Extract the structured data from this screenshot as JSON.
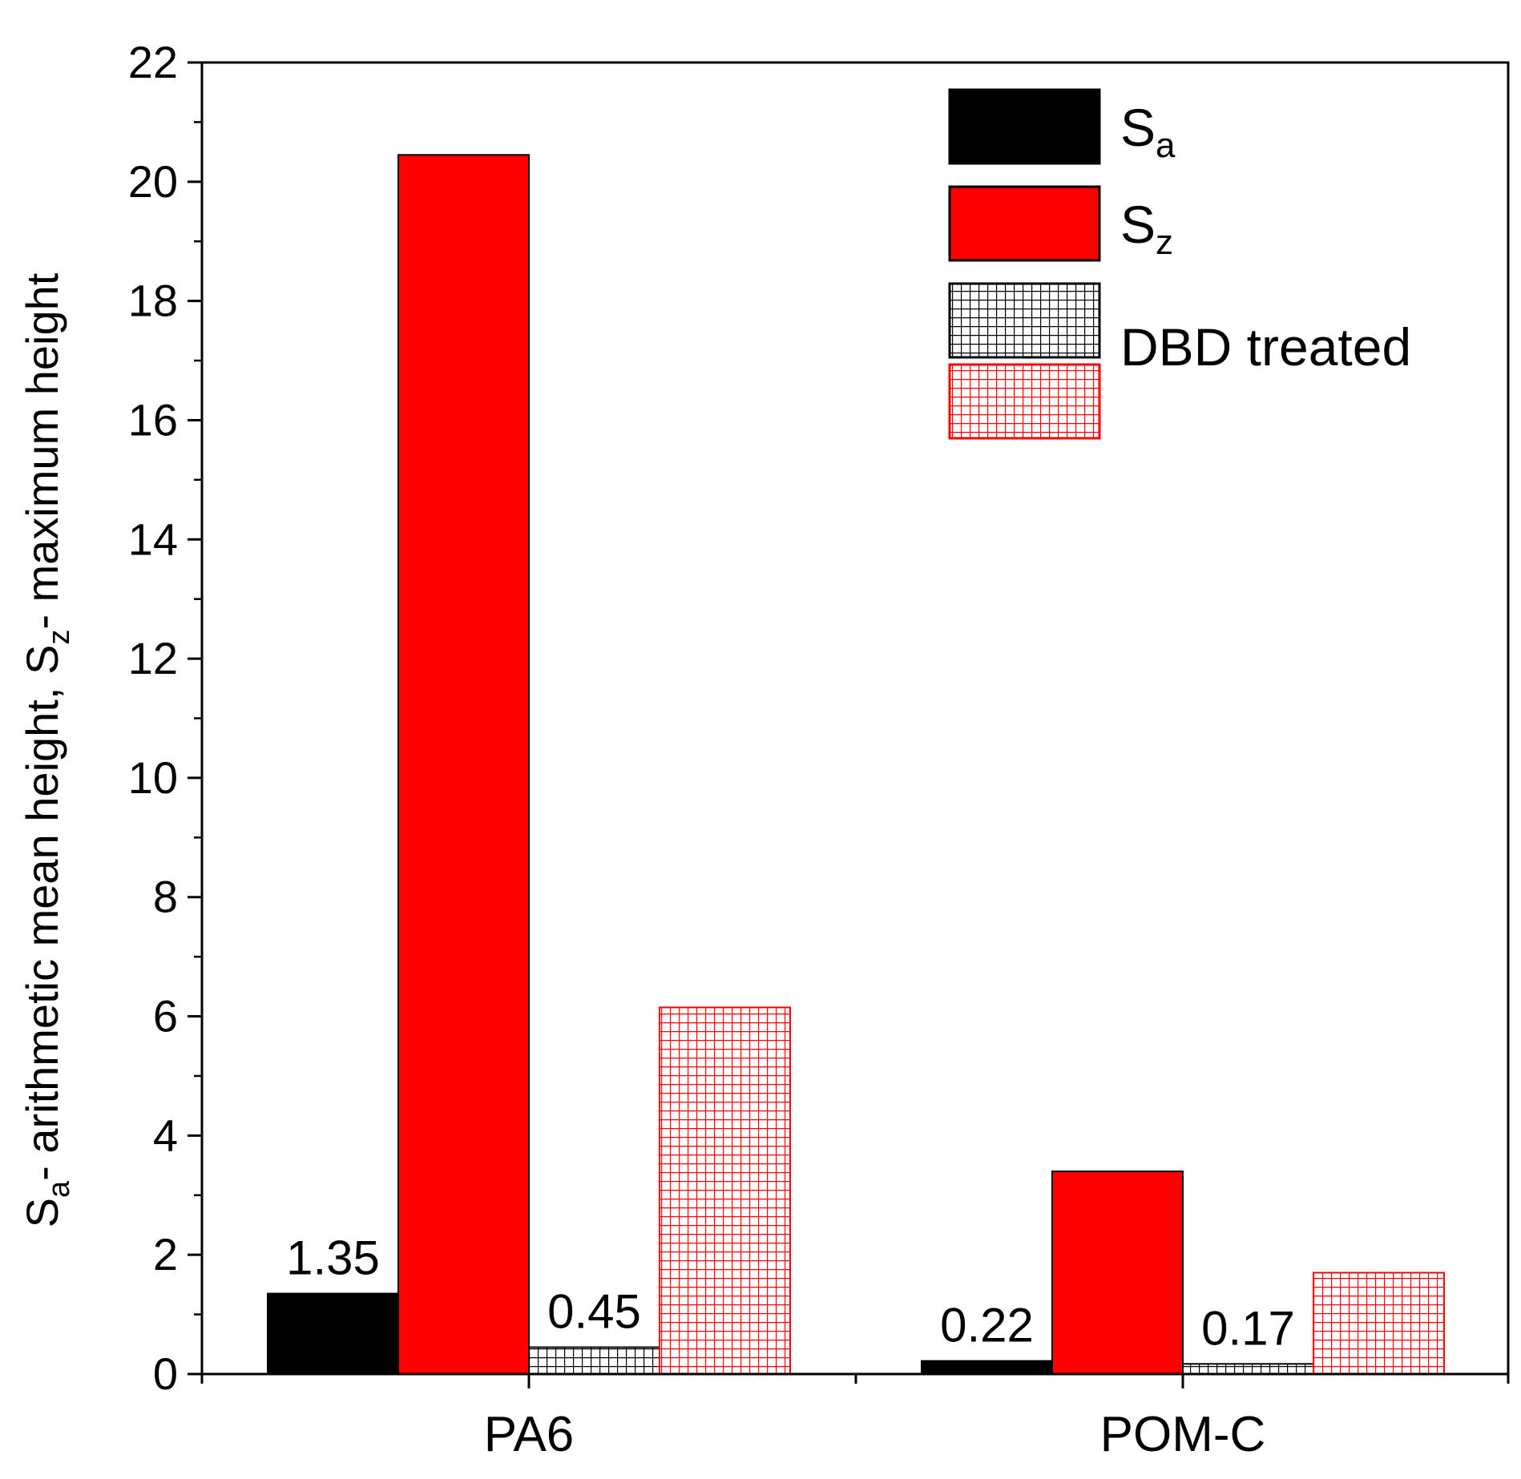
{
  "chart_data": {
    "type": "bar",
    "categories": [
      "PA6",
      "POM-C"
    ],
    "series": [
      {
        "name": "Sa",
        "legend_main": "S",
        "legend_sub": "a",
        "style": "solid",
        "color": "#000000",
        "values": [
          1.35,
          0.22
        ],
        "labels": [
          "1.35",
          "0.22"
        ]
      },
      {
        "name": "Sz",
        "legend_main": "S",
        "legend_sub": "z",
        "style": "solid",
        "color": "#ff0000",
        "values": [
          20.45,
          3.4
        ],
        "labels": [
          "",
          ""
        ]
      },
      {
        "name": "Sa DBD treated",
        "style": "grid",
        "color": "#000000",
        "values": [
          0.45,
          0.17
        ],
        "labels": [
          "0.45",
          "0.17"
        ]
      },
      {
        "name": "Sz DBD treated",
        "style": "grid",
        "color": "#ff0000",
        "values": [
          6.15,
          1.7
        ],
        "labels": [
          "",
          ""
        ]
      }
    ],
    "legend": {
      "entries": [
        {
          "main": "S",
          "sub": "a"
        },
        {
          "main": "S",
          "sub": "z"
        },
        {
          "main": "DBD treated",
          "sub": ""
        }
      ],
      "placement": "top-right"
    },
    "ylabel": {
      "parts": [
        {
          "text": "S",
          "sub": false
        },
        {
          "text": "a",
          "sub": true
        },
        {
          "text": "- arithmetic mean height, S",
          "sub": false
        },
        {
          "text": "z",
          "sub": true
        },
        {
          "text": "- maximum height",
          "sub": false
        }
      ]
    },
    "xlabel": "",
    "ylim": [
      0,
      22
    ],
    "yticks": [
      0,
      2,
      4,
      6,
      8,
      10,
      12,
      14,
      16,
      18,
      20,
      22
    ],
    "minor_step": 1,
    "grid": false
  }
}
